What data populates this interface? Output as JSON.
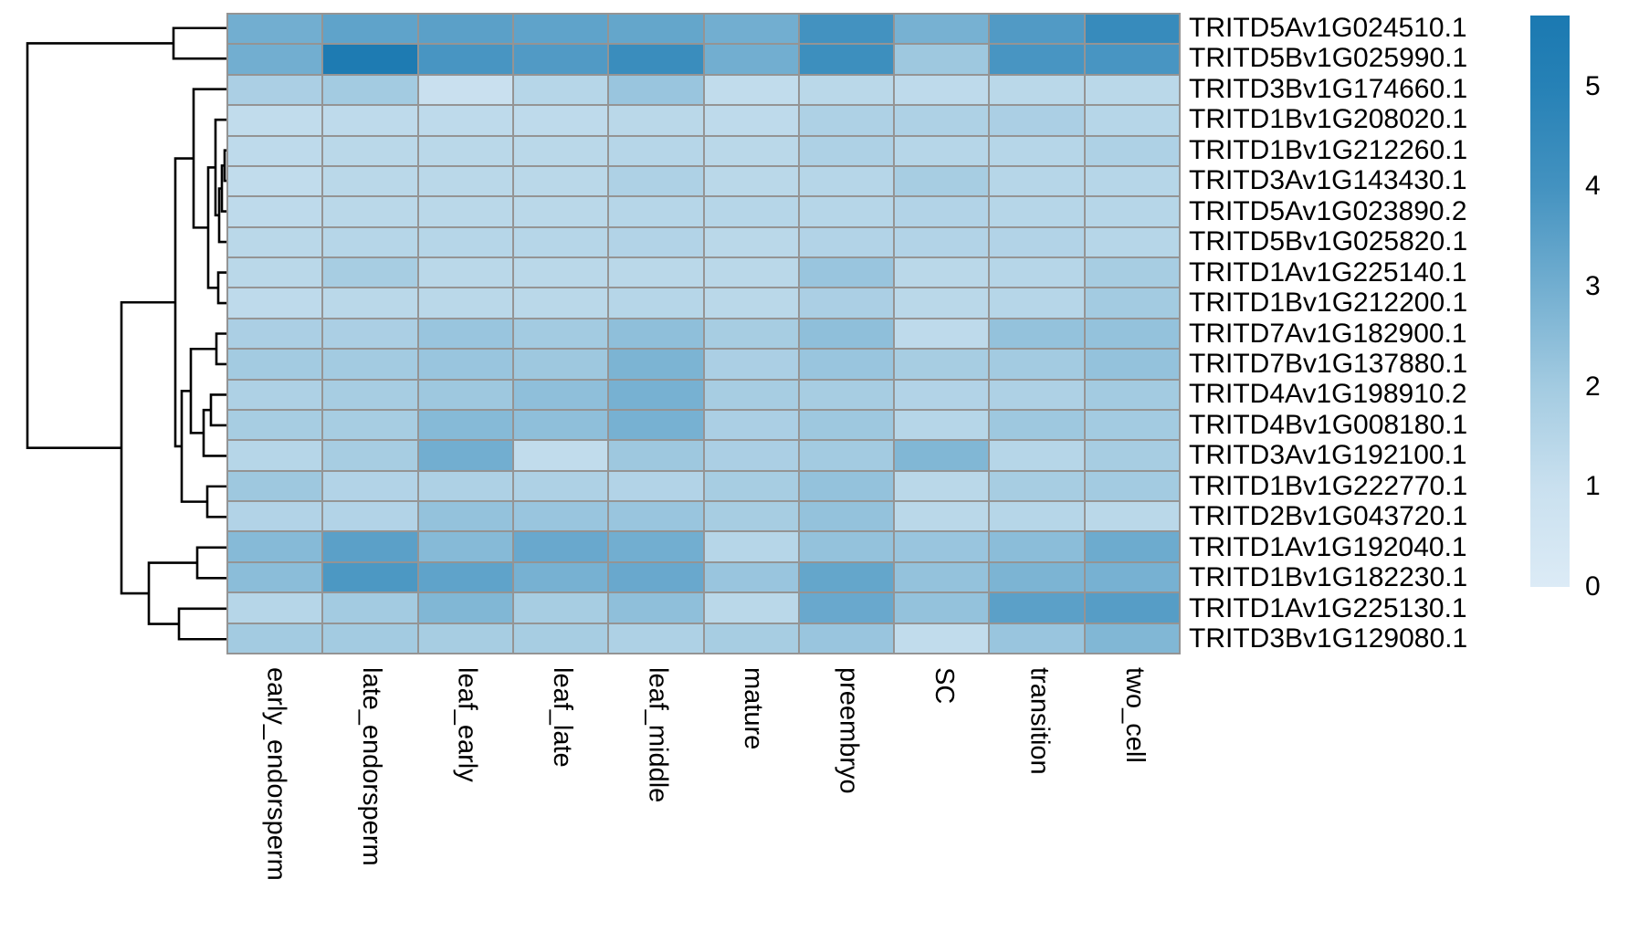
{
  "figure": {
    "background": "#ffffff",
    "grid_color": "#949494",
    "dendrogram_color": "#000000",
    "text_color": "#000000"
  },
  "chart_data": {
    "type": "heatmap",
    "title": "",
    "xlabel": "",
    "ylabel": "",
    "legend_position": "right",
    "grid": true,
    "columns": [
      "early_endorsperm",
      "late_endorsperm",
      "leaf_early",
      "leaf_late",
      "leaf_middle",
      "mature",
      "preembryo",
      "SC",
      "transition",
      "two_cell"
    ],
    "rows": [
      "TRITD5Av1G024510.1",
      "TRITD5Bv1G025990.1",
      "TRITD3Bv1G174660.1",
      "TRITD1Bv1G208020.1",
      "TRITD1Bv1G212260.1",
      "TRITD3Av1G143430.1",
      "TRITD5Av1G023890.2",
      "TRITD5Bv1G025820.1",
      "TRITD1Av1G225140.1",
      "TRITD1Bv1G212200.1",
      "TRITD7Av1G182900.1",
      "TRITD7Bv1G137880.1",
      "TRITD4Av1G198910.2",
      "TRITD4Bv1G008180.1",
      "TRITD3Av1G192100.1",
      "TRITD1Bv1G222770.1",
      "TRITD2Bv1G043720.1",
      "TRITD1Av1G192040.1",
      "TRITD1Bv1G182230.1",
      "TRITD1Av1G225130.1",
      "TRITD3Bv1G129080.1"
    ],
    "values": [
      [
        3.0,
        3.4,
        3.5,
        3.4,
        3.3,
        3.0,
        4.0,
        2.9,
        3.7,
        4.4
      ],
      [
        3.0,
        5.5,
        3.9,
        3.7,
        4.3,
        3.0,
        4.2,
        2.1,
        3.9,
        3.9
      ],
      [
        1.8,
        2.0,
        1.0,
        1.5,
        2.2,
        1.2,
        1.4,
        1.3,
        1.4,
        1.4
      ],
      [
        1.2,
        1.3,
        1.3,
        1.3,
        1.4,
        1.3,
        1.7,
        1.7,
        1.8,
        1.5
      ],
      [
        1.3,
        1.4,
        1.4,
        1.4,
        1.5,
        1.4,
        1.7,
        1.5,
        1.5,
        1.7
      ],
      [
        1.2,
        1.4,
        1.4,
        1.4,
        1.7,
        1.4,
        1.5,
        1.9,
        1.5,
        1.5
      ],
      [
        1.3,
        1.4,
        1.4,
        1.4,
        1.5,
        1.5,
        1.5,
        1.6,
        1.5,
        1.5
      ],
      [
        1.4,
        1.5,
        1.5,
        1.5,
        1.6,
        1.4,
        1.6,
        1.6,
        1.6,
        1.5
      ],
      [
        1.4,
        1.9,
        1.4,
        1.4,
        1.4,
        1.4,
        2.2,
        1.4,
        1.5,
        1.9
      ],
      [
        1.3,
        1.4,
        1.4,
        1.4,
        1.5,
        1.4,
        1.8,
        1.4,
        1.5,
        2.0
      ],
      [
        1.8,
        1.8,
        2.2,
        2.0,
        2.4,
        1.9,
        2.4,
        1.3,
        2.3,
        2.3
      ],
      [
        2.0,
        2.0,
        2.2,
        2.1,
        2.8,
        1.8,
        2.2,
        1.9,
        2.0,
        2.3
      ],
      [
        1.7,
        1.9,
        2.1,
        2.4,
        2.9,
        1.9,
        1.9,
        1.6,
        1.7,
        2.0
      ],
      [
        1.9,
        1.9,
        2.6,
        2.4,
        2.9,
        1.8,
        2.1,
        1.5,
        2.1,
        2.0
      ],
      [
        1.5,
        1.9,
        3.0,
        1.2,
        2.1,
        1.8,
        2.0,
        2.7,
        1.5,
        1.9
      ],
      [
        2.1,
        1.6,
        1.7,
        1.7,
        1.6,
        1.9,
        2.3,
        1.4,
        1.9,
        2.0
      ],
      [
        1.6,
        1.6,
        2.3,
        2.2,
        2.2,
        1.9,
        2.3,
        1.4,
        1.5,
        1.4
      ],
      [
        2.6,
        3.5,
        2.6,
        3.2,
        3.0,
        1.5,
        2.3,
        2.2,
        2.5,
        3.1
      ],
      [
        2.5,
        3.8,
        3.4,
        2.9,
        3.2,
        2.2,
        3.3,
        2.3,
        2.8,
        2.9
      ],
      [
        1.5,
        2.0,
        2.7,
        1.9,
        2.4,
        1.4,
        3.2,
        2.3,
        3.5,
        3.6
      ],
      [
        2.0,
        2.0,
        1.9,
        1.9,
        1.7,
        1.9,
        2.2,
        1.2,
        2.2,
        2.7
      ]
    ],
    "value_range": [
      0,
      5.71
    ],
    "colorbar": {
      "position": "right",
      "tick_labels": [
        "5",
        "4",
        "3",
        "2",
        "1",
        "0"
      ],
      "tick_values": [
        5,
        4,
        3,
        2,
        1,
        0
      ],
      "color_stops": [
        {
          "v": 0.0,
          "c": "#dcebf6"
        },
        {
          "v": 1.0,
          "c": "#c9e0ef"
        },
        {
          "v": 2.0,
          "c": "#a3cbe1"
        },
        {
          "v": 3.0,
          "c": "#72aed0"
        },
        {
          "v": 4.0,
          "c": "#4392c0"
        },
        {
          "v": 5.0,
          "c": "#2681b6"
        },
        {
          "v": 5.71,
          "c": "#1b79b1"
        }
      ]
    },
    "row_dendrogram": {
      "leaves": 21,
      "merges": [
        [
          "L1",
          "L2",
          190
        ],
        [
          "L5",
          "L6",
          246
        ],
        [
          "N2",
          "L7",
          243
        ],
        [
          "N3",
          "L8",
          240
        ],
        [
          "L4",
          "N4",
          236
        ],
        [
          "L9",
          "L10",
          239
        ],
        [
          "N5",
          "N6",
          228
        ],
        [
          "L3",
          "N7",
          212
        ],
        [
          "L11",
          "L12",
          237
        ],
        [
          "L13",
          "L14",
          231
        ],
        [
          "N10",
          "L15",
          223
        ],
        [
          "N9",
          "N11",
          209
        ],
        [
          "L16",
          "L17",
          227
        ],
        [
          "N12",
          "N13",
          199
        ],
        [
          "N8",
          "N14",
          192
        ],
        [
          "L18",
          "L19",
          216
        ],
        [
          "L20",
          "L21",
          196
        ],
        [
          "N16",
          "N17",
          163
        ],
        [
          "N15",
          "N18",
          133
        ],
        [
          "N1",
          "N19",
          30
        ]
      ]
    }
  }
}
